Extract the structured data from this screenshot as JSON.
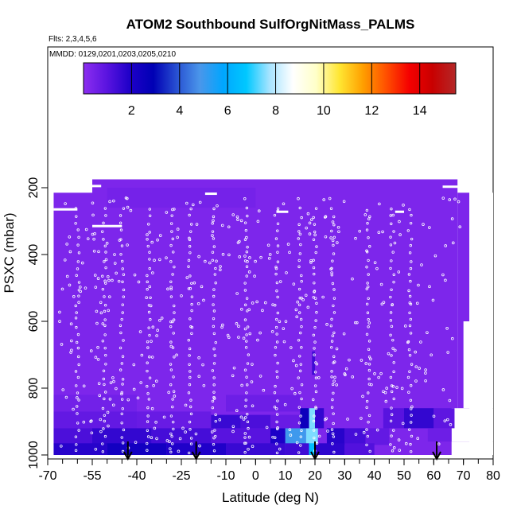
{
  "chart_data": {
    "type": "heatmap",
    "title": "ATOM2 Southbound SulfOrgNitMass_PALMS",
    "flights_note": "Flts: 2,3,4,5,6",
    "dates_note": "MMDD: 0129,0201,0203,0205,0210",
    "xlabel": "Latitude (deg N)",
    "ylabel": "PSXC (mbar)",
    "xlim": [
      -70,
      80
    ],
    "ylim": [
      1000,
      100
    ],
    "x_ticks": [
      -70,
      -55,
      -40,
      -25,
      -10,
      0,
      10,
      20,
      30,
      40,
      50,
      60,
      70,
      80
    ],
    "y_ticks": [
      200,
      400,
      600,
      800,
      1000
    ],
    "colorbar": {
      "range": [
        0,
        15.5
      ],
      "ticks": [
        2,
        4,
        6,
        8,
        10,
        12,
        14
      ],
      "colors": [
        "#8c2ef0",
        "#5a14e0",
        "#1e00c8",
        "#0000b4",
        "#2850d2",
        "#4a96ea",
        "#00a6ff",
        "#00c8ff",
        "#a8e4ff",
        "#ffffff",
        "#ffffc8",
        "#ffe632",
        "#ffa000",
        "#ff5000",
        "#f50000",
        "#c80000",
        "#b42828"
      ]
    },
    "arrow_latitudes": [
      -43,
      -20,
      20,
      61
    ],
    "background_value": 0.3,
    "cells": [
      {
        "lat": [
          -68,
          -40
        ],
        "p": [
          870,
          920
        ],
        "value": 0.8
      },
      {
        "lat": [
          -40,
          -15
        ],
        "p": [
          870,
          920
        ],
        "value": 0.7
      },
      {
        "lat": [
          -68,
          -55
        ],
        "p": [
          920,
          970
        ],
        "value": 1.2
      },
      {
        "lat": [
          -55,
          -35
        ],
        "p": [
          920,
          970
        ],
        "value": 1.6
      },
      {
        "lat": [
          -35,
          -15
        ],
        "p": [
          920,
          970
        ],
        "value": 1.3
      },
      {
        "lat": [
          -15,
          5
        ],
        "p": [
          920,
          970
        ],
        "value": 1.0
      },
      {
        "lat": [
          5,
          10
        ],
        "p": [
          920,
          970
        ],
        "value": 2.0
      },
      {
        "lat": [
          10,
          17
        ],
        "p": [
          920,
          970
        ],
        "value": 5.0
      },
      {
        "lat": [
          17,
          21
        ],
        "p": [
          920,
          970
        ],
        "value": 7.5
      },
      {
        "lat": [
          24,
          30
        ],
        "p": [
          920,
          970
        ],
        "value": 1.8
      },
      {
        "lat": [
          30,
          37
        ],
        "p": [
          920,
          970
        ],
        "value": 1.3
      },
      {
        "lat": [
          37,
          45
        ],
        "p": [
          920,
          970
        ],
        "value": 0.8
      },
      {
        "lat": [
          -68,
          -50
        ],
        "p": [
          965,
          1000
        ],
        "value": 1.8
      },
      {
        "lat": [
          -50,
          -30
        ],
        "p": [
          965,
          1000
        ],
        "value": 2.3
      },
      {
        "lat": [
          -30,
          -10
        ],
        "p": [
          965,
          1000
        ],
        "value": 1.9
      },
      {
        "lat": [
          -10,
          10
        ],
        "p": [
          965,
          1000
        ],
        "value": 1.5
      },
      {
        "lat": [
          10,
          18
        ],
        "p": [
          965,
          1000
        ],
        "value": 1.4
      },
      {
        "lat": [
          18,
          20
        ],
        "p": [
          965,
          1000
        ],
        "value": 6.5
      },
      {
        "lat": [
          20,
          30
        ],
        "p": [
          965,
          1000
        ],
        "value": 1.7
      },
      {
        "lat": [
          30,
          40
        ],
        "p": [
          965,
          1000
        ],
        "value": 1.1
      },
      {
        "lat": [
          -15,
          -5
        ],
        "p": [
          880,
          920
        ],
        "value": 1.5
      },
      {
        "lat": [
          -5,
          5
        ],
        "p": [
          880,
          920
        ],
        "value": 1.2
      },
      {
        "lat": [
          5,
          15
        ],
        "p": [
          880,
          920
        ],
        "value": 0.7
      },
      {
        "lat": [
          15,
          18
        ],
        "p": [
          860,
          920
        ],
        "value": 2.5
      },
      {
        "lat": [
          18,
          20
        ],
        "p": [
          860,
          920
        ],
        "value": 7.5
      },
      {
        "lat": [
          20,
          23
        ],
        "p": [
          860,
          920
        ],
        "value": 1.6
      },
      {
        "lat": [
          43,
          50
        ],
        "p": [
          860,
          920
        ],
        "value": 1.0
      },
      {
        "lat": [
          50,
          60
        ],
        "p": [
          860,
          920
        ],
        "value": 1.6
      },
      {
        "lat": [
          60,
          67
        ],
        "p": [
          860,
          920
        ],
        "value": 0.9
      },
      {
        "lat": [
          58,
          66
        ],
        "p": [
          920,
          960
        ],
        "value": 0.6
      },
      {
        "lat": [
          -68,
          -40
        ],
        "p": [
          820,
          870
        ],
        "value": 0.5
      },
      {
        "lat": [
          -10,
          15
        ],
        "p": [
          820,
          870
        ],
        "value": 0.6
      },
      {
        "lat": [
          19,
          20
        ],
        "p": [
          690,
          760
        ],
        "value": 1.4
      },
      {
        "lat": [
          -50,
          0
        ],
        "p": [
          200,
          260
        ],
        "value": 0.45
      }
    ],
    "coverage": {
      "top_segments": [
        {
          "lat": [
            -68,
            -55
          ],
          "p_top": 215
        },
        {
          "lat": [
            -55,
            68
          ],
          "p_top": 175
        },
        {
          "lat": [
            68,
            72
          ],
          "p_top": 215
        }
      ],
      "p_bottom": 1000,
      "right_edge": [
        {
          "p": [
            215,
            600
          ],
          "lat": 72
        },
        {
          "p": [
            600,
            860
          ],
          "lat": 70
        },
        {
          "p": [
            860,
            960
          ],
          "lat": 66
        }
      ],
      "left_edge_lat": -68
    },
    "track_white_segments": [
      {
        "lat": [
          -60,
          -52
        ],
        "p": 195
      },
      {
        "lat": [
          -68,
          -60
        ],
        "p": 265
      },
      {
        "lat": [
          -55,
          -45
        ],
        "p": 315
      },
      {
        "lat": [
          -17,
          -13
        ],
        "p": 218
      },
      {
        "lat": [
          7,
          11
        ],
        "p": 272
      },
      {
        "lat": [
          63,
          70
        ],
        "p": 197
      },
      {
        "lat": [
          47,
          50
        ],
        "p": 272
      }
    ]
  }
}
